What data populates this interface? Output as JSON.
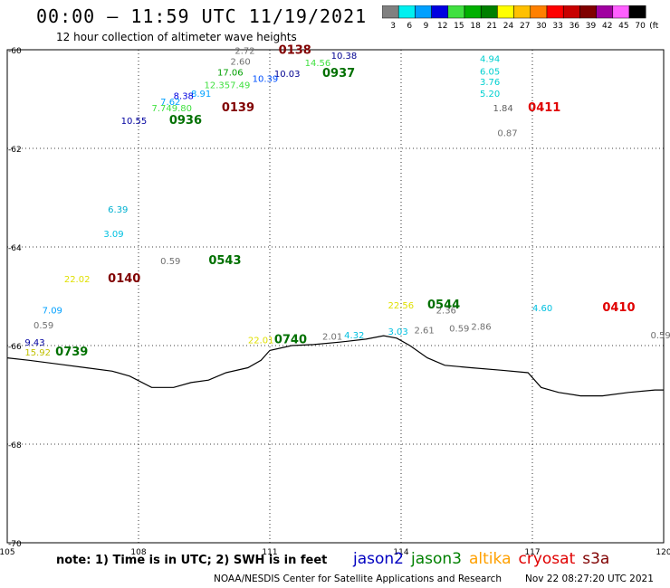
{
  "title": "00:00 – 11:59 UTC 11/19/2021",
  "subtitle": "12 hour collection of altimeter wave heights",
  "colorbar": {
    "labels": [
      "3",
      "6",
      "9",
      "12",
      "15",
      "18",
      "21",
      "24",
      "27",
      "30",
      "33",
      "36",
      "39",
      "42",
      "45",
      "70"
    ],
    "unit": "(ft)",
    "colors": [
      "#808080",
      "#00f0f0",
      "#00a0ff",
      "#0000e0",
      "#40e040",
      "#00b000",
      "#008000",
      "#ffff00",
      "#ffc000",
      "#ff8000",
      "#ff0000",
      "#c80000",
      "#800000",
      "#a000a0",
      "#ff60ff",
      "#000000"
    ]
  },
  "axes": {
    "x_ticks": [
      "105",
      "108",
      "111",
      "114",
      "117",
      "120"
    ],
    "y_ticks": [
      "-60",
      "-62",
      "-64",
      "-66",
      "-68",
      "-70"
    ]
  },
  "observations": [
    {
      "lon": 110.2,
      "lat": -60.08,
      "text": "2.72",
      "color": "#707070"
    },
    {
      "lon": 111.2,
      "lat": -60.08,
      "text": "0138",
      "color": "#800000",
      "pass": true
    },
    {
      "lon": 112.4,
      "lat": -60.18,
      "text": "10.38",
      "color": "#000090"
    },
    {
      "lon": 110.1,
      "lat": -60.3,
      "text": "2.60",
      "color": "#707070"
    },
    {
      "lon": 111.8,
      "lat": -60.33,
      "text": "14.56",
      "color": "#40e040"
    },
    {
      "lon": 109.8,
      "lat": -60.52,
      "text": "17.06",
      "color": "#00a000"
    },
    {
      "lon": 111.1,
      "lat": -60.55,
      "text": "10.03",
      "color": "#000090"
    },
    {
      "lon": 112.2,
      "lat": -60.55,
      "text": "0937",
      "color": "#007000",
      "pass": true
    },
    {
      "lon": 110.6,
      "lat": -60.65,
      "text": "10.39",
      "color": "#0050ff"
    },
    {
      "lon": 109.5,
      "lat": -60.78,
      "text": "12.357.49",
      "color": "#40e040"
    },
    {
      "lon": 109.2,
      "lat": -60.95,
      "text": "8.91",
      "color": "#00a0ff"
    },
    {
      "lon": 108.8,
      "lat": -61.0,
      "text": "8.38",
      "color": "#0000e0"
    },
    {
      "lon": 108.5,
      "lat": -61.12,
      "text": "7.62",
      "color": "#00a0ff"
    },
    {
      "lon": 108.3,
      "lat": -61.25,
      "text": "7.749.80",
      "color": "#40e040"
    },
    {
      "lon": 109.9,
      "lat": -61.25,
      "text": "0139",
      "color": "#800000",
      "pass": true
    },
    {
      "lon": 107.6,
      "lat": -61.5,
      "text": "10.55",
      "color": "#0000a0"
    },
    {
      "lon": 108.7,
      "lat": -61.5,
      "text": "0936",
      "color": "#007000",
      "pass": true
    },
    {
      "lon": 115.8,
      "lat": -60.25,
      "text": "4.94",
      "color": "#00d0d0"
    },
    {
      "lon": 115.8,
      "lat": -60.5,
      "text": "6.05",
      "color": "#00d0d0"
    },
    {
      "lon": 115.8,
      "lat": -60.72,
      "text": "3.76",
      "color": "#00d0d0"
    },
    {
      "lon": 115.8,
      "lat": -60.95,
      "text": "5.20",
      "color": "#00d0d0"
    },
    {
      "lon": 116.1,
      "lat": -61.25,
      "text": "1.84",
      "color": "#606060"
    },
    {
      "lon": 116.9,
      "lat": -61.25,
      "text": "0411",
      "color": "#e00000",
      "pass": true
    },
    {
      "lon": 116.2,
      "lat": -61.75,
      "text": "0.87",
      "color": "#707070"
    },
    {
      "lon": 107.3,
      "lat": -63.3,
      "text": "6.39",
      "color": "#00b0d0"
    },
    {
      "lon": 107.2,
      "lat": -63.8,
      "text": "3.09",
      "color": "#00c0e0"
    },
    {
      "lon": 108.5,
      "lat": -64.35,
      "text": "0.59",
      "color": "#707070"
    },
    {
      "lon": 109.6,
      "lat": -64.35,
      "text": "0543",
      "color": "#007000",
      "pass": true
    },
    {
      "lon": 106.3,
      "lat": -64.72,
      "text": "22.02",
      "color": "#e0e000"
    },
    {
      "lon": 107.3,
      "lat": -64.72,
      "text": "0140",
      "color": "#800000",
      "pass": true
    },
    {
      "lon": 105.8,
      "lat": -65.35,
      "text": "7.09",
      "color": "#00a0ff"
    },
    {
      "lon": 105.6,
      "lat": -65.65,
      "text": "0.59",
      "color": "#707070"
    },
    {
      "lon": 105.4,
      "lat": -66.0,
      "text": "9.43",
      "color": "#0000a0"
    },
    {
      "lon": 105.4,
      "lat": -66.2,
      "text": "15.92",
      "color": "#c0c000"
    },
    {
      "lon": 106.1,
      "lat": -66.2,
      "text": "0739",
      "color": "#007000",
      "pass": true
    },
    {
      "lon": 110.5,
      "lat": -65.95,
      "text": "22.01",
      "color": "#e0e000"
    },
    {
      "lon": 111.1,
      "lat": -65.95,
      "text": "0740",
      "color": "#007000",
      "pass": true
    },
    {
      "lon": 112.2,
      "lat": -65.88,
      "text": "2.01",
      "color": "#707070"
    },
    {
      "lon": 112.7,
      "lat": -65.85,
      "text": "4.32",
      "color": "#00c0e0"
    },
    {
      "lon": 113.7,
      "lat": -65.78,
      "text": "3.03",
      "color": "#00c0e0"
    },
    {
      "lon": 113.7,
      "lat": -65.25,
      "text": "22.56",
      "color": "#e0e000"
    },
    {
      "lon": 114.6,
      "lat": -65.25,
      "text": "0544",
      "color": "#007000",
      "pass": true
    },
    {
      "lon": 114.8,
      "lat": -65.35,
      "text": "2.36",
      "color": "#707070"
    },
    {
      "lon": 114.3,
      "lat": -65.75,
      "text": "2.61",
      "color": "#707070"
    },
    {
      "lon": 115.1,
      "lat": -65.72,
      "text": "0.59",
      "color": "#707070"
    },
    {
      "lon": 115.6,
      "lat": -65.68,
      "text": "2.86",
      "color": "#707070"
    },
    {
      "lon": 117.0,
      "lat": -65.3,
      "text": "4.60",
      "color": "#00c0e0"
    },
    {
      "lon": 118.6,
      "lat": -65.3,
      "text": "0410",
      "color": "#e00000",
      "pass": true
    },
    {
      "lon": 119.7,
      "lat": -65.85,
      "text": "0.59",
      "color": "#707070"
    }
  ],
  "coastline": [
    [
      105,
      -66.25
    ],
    [
      105.5,
      -66.3
    ],
    [
      106.2,
      -66.38
    ],
    [
      106.8,
      -66.45
    ],
    [
      107.4,
      -66.52
    ],
    [
      107.8,
      -66.62
    ],
    [
      108.3,
      -66.85
    ],
    [
      108.8,
      -66.85
    ],
    [
      109.2,
      -66.75
    ],
    [
      109.6,
      -66.7
    ],
    [
      110.0,
      -66.55
    ],
    [
      110.5,
      -66.45
    ],
    [
      110.8,
      -66.3
    ],
    [
      111.0,
      -66.1
    ],
    [
      111.5,
      -66.0
    ],
    [
      112.0,
      -65.98
    ],
    [
      112.6,
      -65.93
    ],
    [
      113.2,
      -65.87
    ],
    [
      113.6,
      -65.8
    ],
    [
      113.9,
      -65.85
    ],
    [
      114.2,
      -66.0
    ],
    [
      114.6,
      -66.25
    ],
    [
      115.0,
      -66.4
    ],
    [
      115.6,
      -66.45
    ],
    [
      116.3,
      -66.5
    ],
    [
      116.9,
      -66.55
    ],
    [
      117.2,
      -66.85
    ],
    [
      117.6,
      -66.95
    ],
    [
      118.1,
      -67.02
    ],
    [
      118.6,
      -67.02
    ],
    [
      119.2,
      -66.95
    ],
    [
      119.8,
      -66.9
    ],
    [
      120,
      -66.9
    ]
  ],
  "footer_note": "note: 1) Time is in UTC; 2) SWH is in feet",
  "legend": [
    {
      "label": "jason2",
      "color": "#0000c0"
    },
    {
      "label": "jason3",
      "color": "#008000"
    },
    {
      "label": "altika",
      "color": "#ffa000"
    },
    {
      "label": "cryosat",
      "color": "#e00000"
    },
    {
      "label": "s3a",
      "color": "#800000"
    }
  ],
  "credit": "NOAA/NESDIS Center for Satellite Applications and Research",
  "timestamp": "Nov 22 08:27:20 UTC 2021"
}
